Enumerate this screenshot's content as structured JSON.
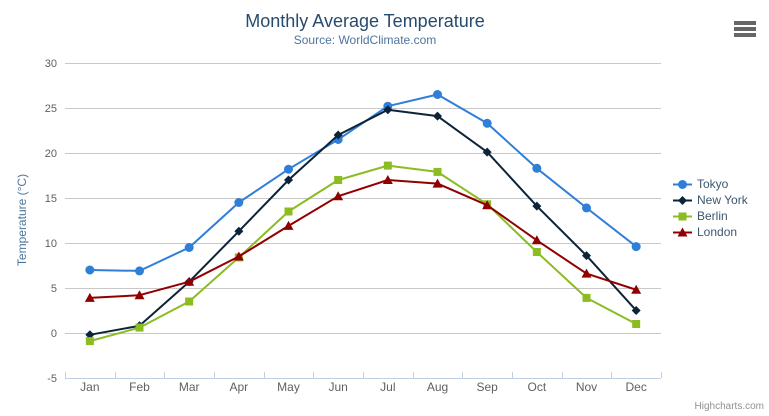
{
  "header": {
    "title": "Monthly Average Temperature",
    "subtitle": "Source: WorldClimate.com"
  },
  "chart_data": {
    "type": "line",
    "title": "Monthly Average Temperature",
    "subtitle": "Source: WorldClimate.com",
    "categories": [
      "Jan",
      "Feb",
      "Mar",
      "Apr",
      "May",
      "Jun",
      "Jul",
      "Aug",
      "Sep",
      "Oct",
      "Nov",
      "Dec"
    ],
    "series": [
      {
        "name": "Tokyo",
        "color": "#2f7ed8",
        "marker": "circle",
        "values": [
          7.0,
          6.9,
          9.5,
          14.5,
          18.2,
          21.5,
          25.2,
          26.5,
          23.3,
          18.3,
          13.9,
          9.6
        ]
      },
      {
        "name": "New York",
        "color": "#0d233a",
        "marker": "diamond",
        "values": [
          -0.2,
          0.8,
          5.7,
          11.3,
          17.0,
          22.0,
          24.8,
          24.1,
          20.1,
          14.1,
          8.6,
          2.5
        ]
      },
      {
        "name": "Berlin",
        "color": "#8bbc21",
        "marker": "square",
        "values": [
          -0.9,
          0.6,
          3.5,
          8.4,
          13.5,
          17.0,
          18.6,
          17.9,
          14.3,
          9.0,
          3.9,
          1.0
        ]
      },
      {
        "name": "London",
        "color": "#910000",
        "marker": "triangle",
        "values": [
          3.9,
          4.2,
          5.7,
          8.5,
          11.9,
          15.2,
          17.0,
          16.6,
          14.2,
          10.3,
          6.6,
          4.8
        ]
      }
    ],
    "xlabel": "",
    "ylabel": "Temperature (°C)",
    "ylim": [
      -5,
      30
    ],
    "ytick_step": 5,
    "yticks": [
      -5,
      0,
      5,
      10,
      15,
      20,
      25,
      30
    ],
    "grid": "horizontal",
    "legend_position": "right"
  },
  "credits": {
    "label": "Highcharts.com"
  },
  "colors": {
    "background": "#ffffff",
    "title": "#274b6d",
    "subtitle": "#4d759e",
    "axis_title": "#4d759e",
    "tick_label": "#606060",
    "grid_line": "#c8c8c8",
    "axis_line": "#c0d0e0",
    "legend_text": "#3e576f",
    "credits": "#909090",
    "menu_icon": "#666666"
  }
}
